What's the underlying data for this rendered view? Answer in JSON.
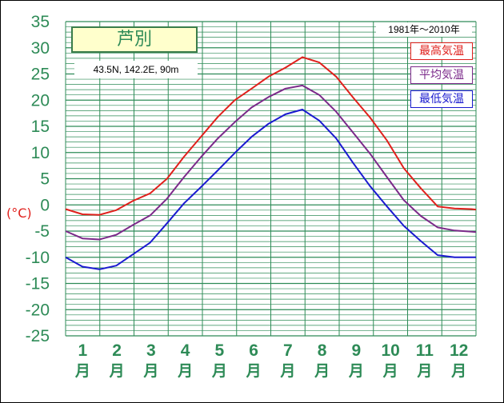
{
  "title": "芦別",
  "location": "43.5N, 142.2E, 90m",
  "period": "1981年〜2010年",
  "unit": "(°C)",
  "colors": {
    "grid": "#2e8b57",
    "axis_text": "#2e8b57",
    "max": "#e0201c",
    "mean": "#7b2a8a",
    "min": "#1a1ad0"
  },
  "chart_data": {
    "type": "line",
    "ylim": [
      -25,
      35
    ],
    "ytick_step": 5,
    "yticks": [
      "35",
      "30",
      "25",
      "20",
      "15",
      "10",
      "5",
      "0",
      "-5",
      "-10",
      "-15",
      "-20",
      "-25"
    ],
    "month_labels": [
      "1\n月",
      "2\n月",
      "3\n月",
      "4\n月",
      "5\n月",
      "6\n月",
      "7\n月",
      "8\n月",
      "9\n月",
      "10\n月",
      "11\n月",
      "12\n月"
    ],
    "x": [
      1,
      16,
      31,
      46,
      61,
      76,
      91,
      106,
      121,
      136,
      151,
      166,
      181,
      196,
      211,
      226,
      241,
      256,
      271,
      286,
      301,
      316,
      331,
      346,
      361,
      365
    ],
    "series": [
      {
        "name": "最高気温",
        "key": "max",
        "values": [
          -0.8,
          -1.8,
          -1.9,
          -1.0,
          0.8,
          2.2,
          5.0,
          9.2,
          13.0,
          16.8,
          20.0,
          22.2,
          24.5,
          26.2,
          28.2,
          27.2,
          24.5,
          20.5,
          16.7,
          12.3,
          7.0,
          3.2,
          -0.3,
          -0.7,
          -0.8,
          -0.9
        ]
      },
      {
        "name": "平均気温",
        "key": "mean",
        "values": [
          -5.0,
          -6.4,
          -6.6,
          -5.7,
          -3.8,
          -2.0,
          1.2,
          5.3,
          9.1,
          12.7,
          15.8,
          18.6,
          20.6,
          22.2,
          22.8,
          21.0,
          17.8,
          13.8,
          9.8,
          5.3,
          0.9,
          -2.1,
          -4.3,
          -4.9,
          -5.1,
          -5.2
        ]
      },
      {
        "name": "最低気温",
        "key": "min",
        "values": [
          -10.0,
          -11.8,
          -12.3,
          -11.6,
          -9.4,
          -7.2,
          -3.5,
          0.3,
          3.4,
          6.6,
          9.9,
          13.0,
          15.5,
          17.3,
          18.2,
          16.1,
          12.7,
          8.0,
          3.6,
          -0.3,
          -4.0,
          -6.9,
          -9.6,
          -10.0,
          -10.0,
          -10.0
        ]
      }
    ]
  }
}
